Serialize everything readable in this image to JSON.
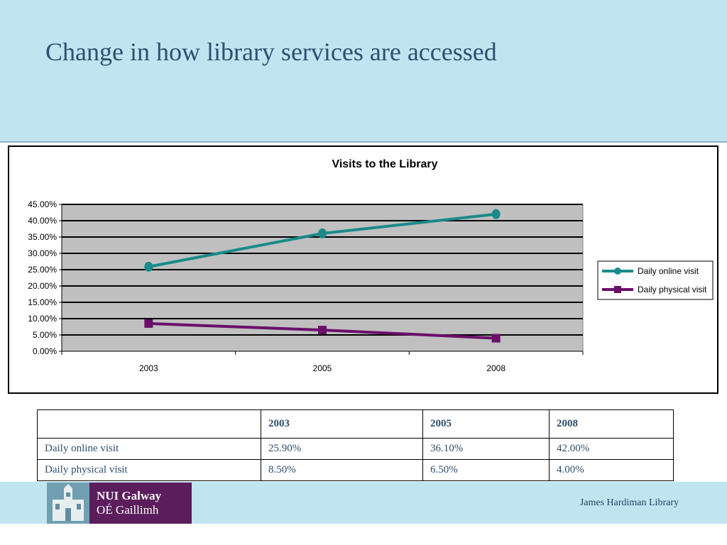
{
  "slide": {
    "title": "Change in how library services are accessed",
    "footer_label": "James Hardiman Library",
    "logo_line1": "NUI Galway",
    "logo_line2": "OÉ Gaillimh",
    "colors": {
      "header_band": "#c1e5f0",
      "title_text": "#2f4f6f",
      "logo_purple": "#5b1d5c"
    }
  },
  "chart_data": {
    "type": "line",
    "title": "Visits to the Library",
    "categories": [
      "2003",
      "2005",
      "2008"
    ],
    "series": [
      {
        "name": "Daily online visit",
        "values": [
          25.9,
          36.1,
          42.0
        ],
        "color": "#1a8a8a",
        "marker": "circle"
      },
      {
        "name": "Daily physical visit",
        "values": [
          8.5,
          6.5,
          4.0
        ],
        "color": "#6b0f6b",
        "marker": "square"
      }
    ],
    "yticks": [
      "0.00%",
      "5.00%",
      "10.00%",
      "15.00%",
      "20.00%",
      "25.00%",
      "30.00%",
      "35.00%",
      "40.00%",
      "45.00%"
    ],
    "ylim": [
      0,
      45
    ],
    "ystep": 5,
    "grid": true,
    "plot_background": "#c0c0c0",
    "legend_position": "right"
  },
  "table": {
    "header": [
      "",
      "2003",
      "2005",
      "2008"
    ],
    "rows": [
      [
        "Daily online visit",
        "25.90%",
        "36.10%",
        "42.00%"
      ],
      [
        "Daily physical visit",
        "8.50%",
        "6.50%",
        "4.00%"
      ]
    ]
  }
}
